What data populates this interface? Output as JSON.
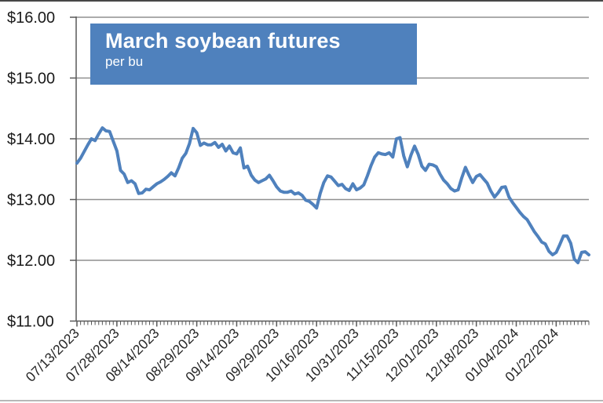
{
  "title_box": {
    "title": "March soybean futures",
    "subtitle": "per bu"
  },
  "colors": {
    "accent": "#4f81bd",
    "grid": "#8f8f8f",
    "axis": "#595959",
    "label_text": "#1a1a1a",
    "title_text": "#ffffff"
  },
  "chart_data": {
    "type": "line",
    "title": "March soybean futures",
    "subtitle": "per bu",
    "xlabel": "",
    "ylabel": "",
    "ylim": [
      11,
      16
    ],
    "grid": "horizontal",
    "legend": "none",
    "y_ticks": [
      16,
      15,
      14,
      13,
      12,
      11
    ],
    "y_tick_labels": [
      "$16.00",
      "$15.00",
      "$14.00",
      "$13.00",
      "$12.00",
      "$11.00"
    ],
    "x_tick_labels": [
      "07/13/2023",
      "07/28/2023",
      "08/14/2023",
      "08/29/2023",
      "09/14/2023",
      "09/29/2023",
      "10/16/2023",
      "10/31/2023",
      "11/15/2023",
      "12/01/2023",
      "12/18/2023",
      "01/04/2024",
      "01/22/2024"
    ],
    "x_tick_indices": [
      0,
      11,
      22,
      33,
      44,
      55,
      66,
      77,
      88,
      99,
      110,
      121,
      132
    ],
    "x_unit": "trading days (daily closes)",
    "series": [
      {
        "name": "March soybean futures ($/bu)",
        "color": "#4f81bd",
        "values": [
          13.6,
          13.68,
          13.79,
          13.9,
          14.0,
          13.97,
          14.08,
          14.18,
          14.13,
          14.12,
          13.96,
          13.8,
          13.48,
          13.42,
          13.28,
          13.31,
          13.26,
          13.1,
          13.11,
          13.17,
          13.16,
          13.21,
          13.26,
          13.29,
          13.33,
          13.38,
          13.44,
          13.39,
          13.52,
          13.68,
          13.76,
          13.92,
          14.17,
          14.1,
          13.89,
          13.93,
          13.9,
          13.9,
          13.94,
          13.86,
          13.91,
          13.8,
          13.88,
          13.77,
          13.75,
          13.85,
          13.52,
          13.55,
          13.4,
          13.32,
          13.28,
          13.31,
          13.34,
          13.4,
          13.31,
          13.21,
          13.14,
          13.12,
          13.12,
          13.14,
          13.09,
          13.11,
          13.07,
          12.99,
          12.97,
          12.92,
          12.86,
          13.1,
          13.28,
          13.39,
          13.37,
          13.3,
          13.23,
          13.25,
          13.18,
          13.15,
          13.26,
          13.16,
          13.19,
          13.24,
          13.39,
          13.56,
          13.7,
          13.77,
          13.75,
          13.74,
          13.77,
          13.7,
          14.0,
          14.02,
          13.72,
          13.54,
          13.73,
          13.88,
          13.74,
          13.55,
          13.48,
          13.58,
          13.57,
          13.54,
          13.42,
          13.32,
          13.26,
          13.18,
          13.14,
          13.16,
          13.36,
          13.53,
          13.4,
          13.28,
          13.38,
          13.41,
          13.34,
          13.27,
          13.14,
          13.04,
          13.11,
          13.2,
          13.21,
          13.04,
          12.95,
          12.87,
          12.79,
          12.72,
          12.67,
          12.57,
          12.47,
          12.39,
          12.3,
          12.27,
          12.15,
          12.09,
          12.13,
          12.26,
          12.4,
          12.4,
          12.28,
          12.02,
          11.96,
          12.13,
          12.14,
          12.09
        ]
      }
    ]
  }
}
